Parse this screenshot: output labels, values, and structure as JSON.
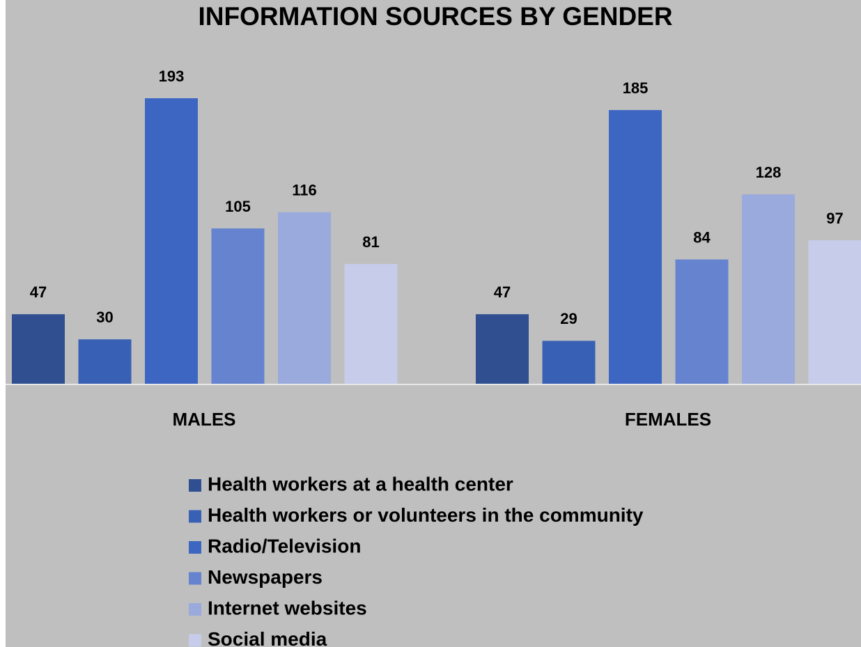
{
  "chart_data": {
    "type": "bar",
    "title": "INFORMATION SOURCES BY GENDER",
    "categories": [
      "MALES",
      "FEMALES"
    ],
    "series": [
      {
        "name": "Health workers at a health center",
        "color": "#2f4f91",
        "values": [
          47,
          47
        ]
      },
      {
        "name": "Health workers or volunteers in the community",
        "color": "#3860b5",
        "values": [
          30,
          29
        ]
      },
      {
        "name": "Radio/Television",
        "color": "#3c66c2",
        "values": [
          193,
          185
        ]
      },
      {
        "name": "Newspapers",
        "color": "#6583cf",
        "values": [
          105,
          84
        ]
      },
      {
        "name": "Internet websites",
        "color": "#9aaadc",
        "values": [
          116,
          128
        ]
      },
      {
        "name": "Social media",
        "color": "#c6cce9",
        "values": [
          81,
          97
        ]
      }
    ]
  }
}
